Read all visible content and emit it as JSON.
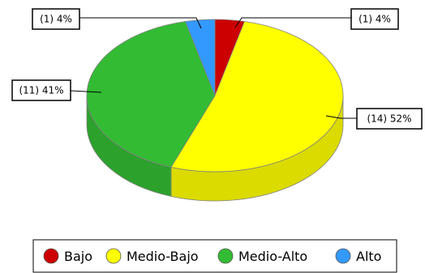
{
  "chart_data": {
    "type": "pie",
    "style": "3d",
    "categories": [
      "Bajo",
      "Medio-Bajo",
      "Medio-Alto",
      "Alto"
    ],
    "values": [
      1,
      14,
      11,
      1
    ],
    "percents": [
      "4%",
      "52%",
      "41%",
      "4%"
    ],
    "labels": [
      "(1) 4%",
      "(14) 52%",
      "(11) 41%",
      "(1) 4%"
    ],
    "colors": [
      "#cc0000",
      "#ffff00",
      "#33bb33",
      "#3399ff"
    ],
    "legend_position": "bottom",
    "legend": [
      {
        "label": "Bajo",
        "color": "#cc0000"
      },
      {
        "label": "Medio-Bajo",
        "color": "#ffff00"
      },
      {
        "label": "Medio-Alto",
        "color": "#33bb33"
      },
      {
        "label": "Alto",
        "color": "#3399ff"
      }
    ]
  }
}
